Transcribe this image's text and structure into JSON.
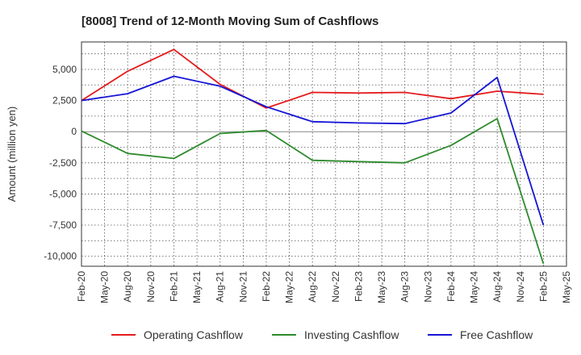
{
  "chart_data": {
    "type": "line",
    "title": "[8008]  Trend of 12-Month Moving Sum of Cashflows",
    "xlabel": "",
    "ylabel": "Amount (million yen)",
    "ylim": [
      -10800,
      7200
    ],
    "yticks": [
      5000,
      2500,
      0,
      -2500,
      -5000,
      -7500,
      -10000
    ],
    "ytick_labels": [
      "5,000",
      "2,500",
      "0",
      "-2,500",
      "-5,000",
      "-7,500",
      "-10,000"
    ],
    "xticks": [
      "Feb-20",
      "May-20",
      "Aug-20",
      "Nov-20",
      "Feb-21",
      "May-21",
      "Aug-21",
      "Nov-21",
      "Feb-22",
      "May-22",
      "Aug-22",
      "Nov-22",
      "Feb-23",
      "May-23",
      "Aug-23",
      "Nov-23",
      "Feb-24",
      "May-24",
      "Aug-24",
      "Nov-24",
      "Feb-25",
      "May-25"
    ],
    "x": [
      "Feb-20",
      "Aug-20",
      "Feb-21",
      "Aug-21",
      "Feb-22",
      "Aug-22",
      "Feb-23",
      "Aug-23",
      "Feb-24",
      "Aug-24",
      "Feb-25"
    ],
    "grid": true,
    "legend_position": "bottom",
    "series": [
      {
        "name": "Operating Cashflow",
        "color": "#e41a1c",
        "values": [
          2500,
          4850,
          6600,
          3800,
          1900,
          3150,
          3100,
          3150,
          2650,
          3250,
          3000
        ]
      },
      {
        "name": "Investing Cashflow",
        "color": "#2e8b2e",
        "values": [
          50,
          -1750,
          -2150,
          -150,
          100,
          -2300,
          -2400,
          -2500,
          -1100,
          1050,
          -10600
        ]
      },
      {
        "name": "Free Cashflow",
        "color": "#1515d6",
        "values": [
          2500,
          3050,
          4450,
          3650,
          2000,
          800,
          700,
          650,
          1500,
          4350,
          -7500
        ]
      }
    ]
  }
}
